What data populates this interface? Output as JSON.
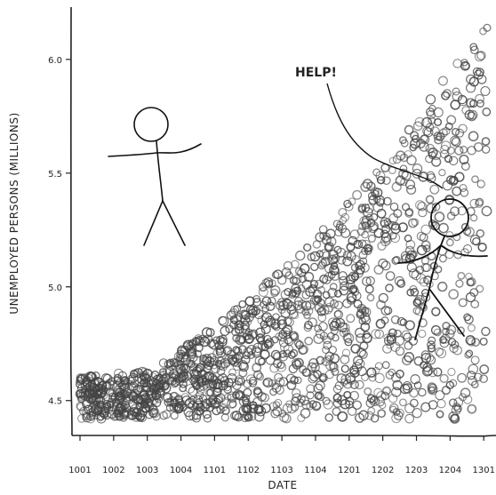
{
  "chart_data": {
    "type": "scatter",
    "title": "",
    "xlabel": "DATE",
    "ylabel": "UNEMPLOYED PERSONS (MILLIONS)",
    "x_ticks": [
      "1001",
      "1002",
      "1003",
      "1004",
      "1101",
      "1102",
      "1103",
      "1104",
      "1201",
      "1202",
      "1203",
      "1204",
      "1301"
    ],
    "y_ticks": [
      "4.5",
      "5.0",
      "5.5",
      "6.0"
    ],
    "ylim": [
      4.37,
      6.23
    ],
    "xlim": [
      0.0,
      12.1
    ],
    "grid": false,
    "marker": "circle",
    "trend": {
      "x": [
        0,
        1,
        2,
        3,
        4,
        5,
        6,
        7,
        8,
        9,
        10,
        11,
        12
      ],
      "upper": [
        4.6,
        4.62,
        4.63,
        4.72,
        4.83,
        4.95,
        5.08,
        5.22,
        5.38,
        5.55,
        5.75,
        5.95,
        6.15
      ],
      "lower": [
        4.42,
        4.42,
        4.42,
        4.42,
        4.42,
        4.42,
        4.42,
        4.42,
        4.42,
        4.42,
        4.42,
        4.42,
        4.42
      ]
    },
    "annotations": [
      {
        "text": "HELP!"
      }
    ]
  }
}
